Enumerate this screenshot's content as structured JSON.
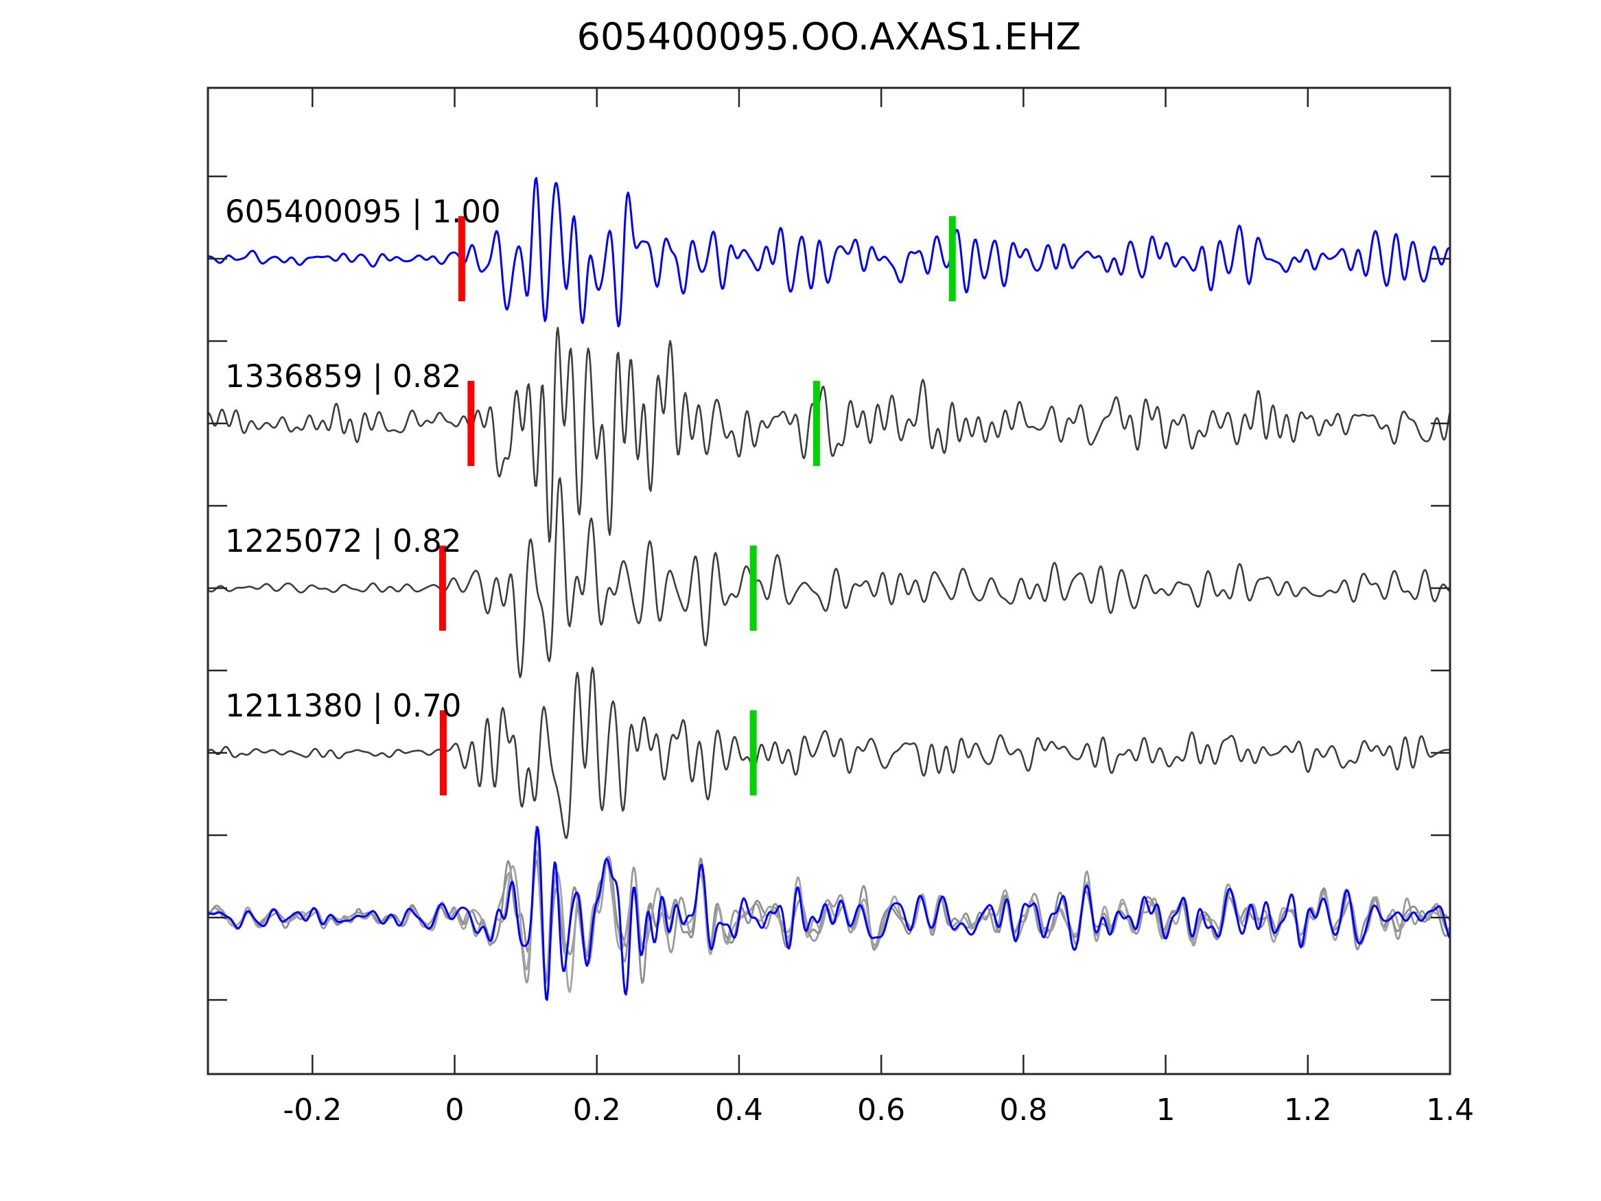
{
  "title": "605400095.OO.AXAS1.EHZ",
  "colors": {
    "template_trace": "#0000ff",
    "match_trace": "#3d3d3d",
    "overlay_gray": "#999999",
    "pick_red": "#ff0000",
    "pick_green": "#00d300",
    "axis": "#262626",
    "text": "#000000"
  },
  "axis": {
    "x_tick_values": [
      -0.2,
      0,
      0.2,
      0.4,
      0.6,
      0.8,
      1,
      1.2,
      1.4
    ],
    "x_tick_labels": [
      "-0.2",
      "0",
      "0.2",
      "0.4",
      "0.6",
      "0.8",
      "1",
      "1.2",
      "1.4"
    ],
    "x_range": [
      -0.347,
      1.4
    ],
    "y_tick_rows": [
      257,
      377,
      497,
      617,
      737,
      857,
      977,
      1097,
      1217,
      1337,
      1457
    ]
  },
  "chart_data": {
    "type": "line",
    "title": "605400095.OO.AXAS1.EHZ",
    "xlabel": "",
    "ylabel": "",
    "x_range": [
      -0.347,
      1.4
    ],
    "grid": false,
    "legend": "inline trace labels, top-left of each trace",
    "traces": [
      {
        "id": "605400095",
        "correlation": "1.00",
        "label": "605400095 | 1.00",
        "color": "#0000ff",
        "row": 0,
        "red_pick": 0.01,
        "green_pick": 0.7,
        "seed": 3,
        "line_width": 3,
        "amp_env": [
          [
            -0.35,
            10
          ],
          [
            -0.02,
            11
          ],
          [
            0.02,
            30
          ],
          [
            0.06,
            60
          ],
          [
            0.1,
            105
          ],
          [
            0.24,
            110
          ],
          [
            0.32,
            60
          ],
          [
            0.45,
            48
          ],
          [
            0.6,
            40
          ],
          [
            0.75,
            36
          ],
          [
            1.4,
            34
          ]
        ]
      },
      {
        "id": "1336859",
        "correlation": "0.82",
        "label": "1336859 | 0.82",
        "color": "#3d3d3d",
        "row": 1,
        "red_pick": 0.023,
        "green_pick": 0.509,
        "seed": 5,
        "line_width": 2.6,
        "amp_env": [
          [
            -0.35,
            20
          ],
          [
            0.02,
            22
          ],
          [
            0.05,
            55
          ],
          [
            0.09,
            120
          ],
          [
            0.13,
            165
          ],
          [
            0.24,
            160
          ],
          [
            0.32,
            70
          ],
          [
            0.45,
            50
          ],
          [
            0.6,
            42
          ],
          [
            0.8,
            36
          ],
          [
            1.4,
            32
          ]
        ]
      },
      {
        "id": "1225072",
        "correlation": "0.82",
        "label": "1225072 | 0.82",
        "color": "#3d3d3d",
        "row": 2,
        "red_pick": -0.017,
        "green_pick": 0.42,
        "seed": 9,
        "line_width": 2.6,
        "amp_env": [
          [
            -0.35,
            8
          ],
          [
            -0.02,
            10
          ],
          [
            0.02,
            45
          ],
          [
            0.08,
            120
          ],
          [
            0.13,
            170
          ],
          [
            0.23,
            165
          ],
          [
            0.3,
            75
          ],
          [
            0.42,
            55
          ],
          [
            0.6,
            45
          ],
          [
            0.8,
            38
          ],
          [
            1.4,
            33
          ]
        ]
      },
      {
        "id": "1211380",
        "correlation": "0.70",
        "label": "1211380 | 0.70",
        "color": "#3d3d3d",
        "row": 3,
        "red_pick": -0.016,
        "green_pick": 0.42,
        "seed": 11,
        "line_width": 2.6,
        "amp_env": [
          [
            -0.35,
            7
          ],
          [
            -0.02,
            9
          ],
          [
            0.02,
            40
          ],
          [
            0.08,
            110
          ],
          [
            0.14,
            150
          ],
          [
            0.22,
            150
          ],
          [
            0.3,
            60
          ],
          [
            0.45,
            42
          ],
          [
            0.6,
            36
          ],
          [
            0.8,
            30
          ],
          [
            1.4,
            27
          ]
        ]
      }
    ],
    "overlay": {
      "row": 4,
      "description": "all aligned traces superimposed: gray matches under blue template",
      "base_seed": 17,
      "members": [
        {
          "color": "#999999",
          "seed": 21,
          "line_width": 2.8
        },
        {
          "color": "#8f8f8f",
          "seed": 22,
          "line_width": 2.8
        },
        {
          "color": "#a3a3a3",
          "seed": 23,
          "line_width": 2.8
        },
        {
          "color": "#0000ff",
          "seed": 24,
          "line_width": 3
        }
      ],
      "amp_env": [
        [
          -0.35,
          14
        ],
        [
          -0.05,
          16
        ],
        [
          0.0,
          40
        ],
        [
          0.06,
          70
        ],
        [
          0.1,
          110
        ],
        [
          0.22,
          115
        ],
        [
          0.3,
          65
        ],
        [
          0.45,
          48
        ],
        [
          0.6,
          40
        ],
        [
          1.4,
          34
        ]
      ]
    },
    "pick_marker": {
      "width": 10,
      "height": 124
    }
  }
}
